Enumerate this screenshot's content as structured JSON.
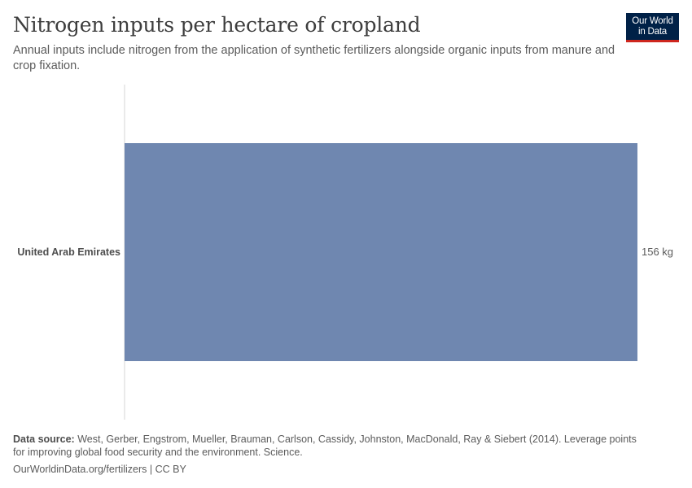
{
  "header": {
    "title": "Nitrogen inputs per hectare of cropland",
    "subtitle": "Annual inputs include nitrogen from the application of synthetic fertilizers alongside organic inputs from manure and crop fixation."
  },
  "logo": {
    "line1": "Our World",
    "line2": "in Data"
  },
  "colors": {
    "bar": "#6f87b0",
    "axis": "#d6d6d6",
    "logo_bg": "#002147",
    "logo_accent": "#ce261e"
  },
  "chart_data": {
    "type": "bar",
    "orientation": "horizontal",
    "categories": [
      "United Arab Emirates"
    ],
    "values": [
      156
    ],
    "value_labels": [
      "156 kg"
    ],
    "unit": "kg",
    "xlim": [
      0,
      156
    ]
  },
  "footer": {
    "source_label": "Data source:",
    "source_text": "West, Gerber, Engstrom, Mueller, Brauman, Carlson, Cassidy, Johnston, MacDonald, Ray & Siebert (2014). Leverage points for improving global food security and the environment. Science.",
    "link_text": "OurWorldinData.org/fertilizers",
    "separator": " | ",
    "license": "CC BY"
  }
}
